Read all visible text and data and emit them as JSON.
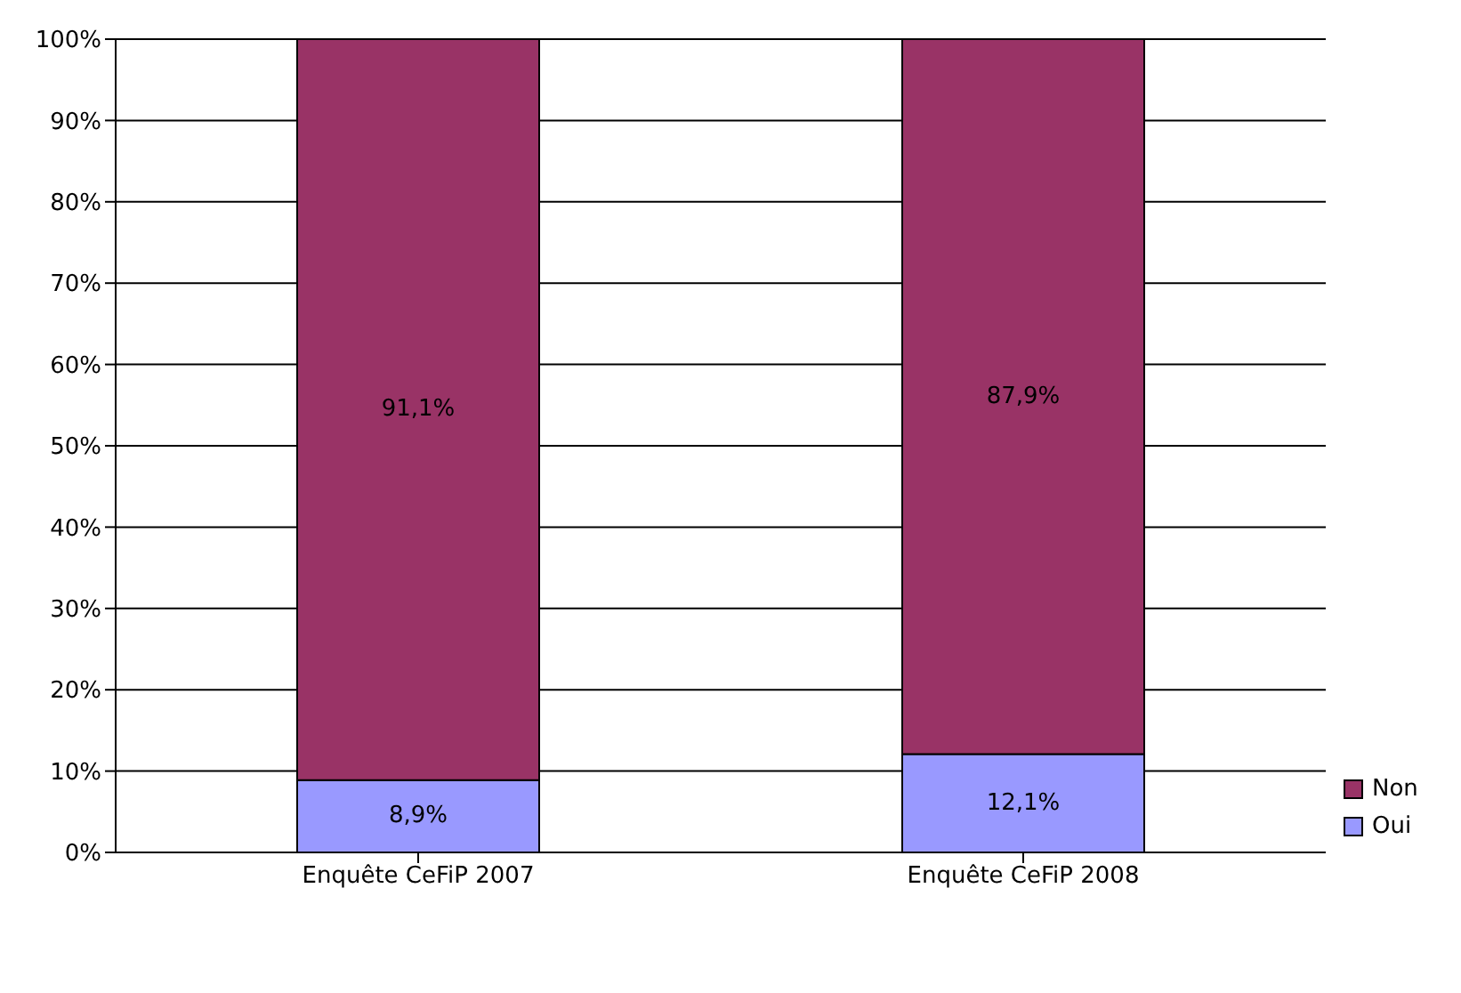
{
  "chart_data": {
    "type": "bar",
    "stacked": true,
    "categories": [
      "Enquête CeFiP 2007",
      "Enquête CeFiP 2008"
    ],
    "series": [
      {
        "name": "Oui",
        "color": "#9999ff",
        "values": [
          8.9,
          12.1
        ],
        "value_labels": [
          "8,9%",
          "12,1%"
        ]
      },
      {
        "name": "Non",
        "color": "#993366",
        "values": [
          91.1,
          87.9
        ],
        "value_labels": [
          "91,1%",
          "87,9%"
        ]
      }
    ],
    "ylim": [
      0,
      100
    ],
    "yticks": [
      {
        "value": 0,
        "label": "0%"
      },
      {
        "value": 10,
        "label": "10%"
      },
      {
        "value": 20,
        "label": "20%"
      },
      {
        "value": 30,
        "label": "30%"
      },
      {
        "value": 40,
        "label": "40%"
      },
      {
        "value": 50,
        "label": "50%"
      },
      {
        "value": 60,
        "label": "60%"
      },
      {
        "value": 70,
        "label": "70%"
      },
      {
        "value": 80,
        "label": "80%"
      },
      {
        "value": 90,
        "label": "90%"
      },
      {
        "value": 100,
        "label": "100%"
      }
    ],
    "grid": "y",
    "legend": "right"
  }
}
